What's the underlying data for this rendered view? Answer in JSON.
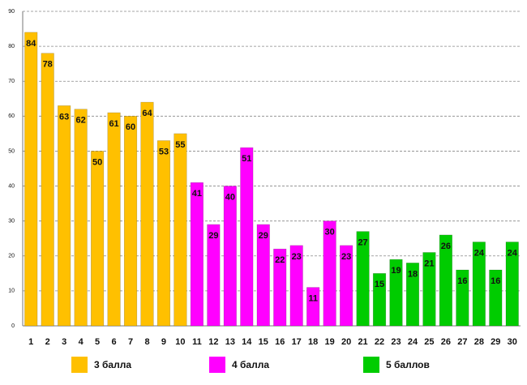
{
  "chart_data": {
    "type": "bar",
    "categories": [
      "1",
      "2",
      "3",
      "4",
      "5",
      "6",
      "7",
      "8",
      "9",
      "10",
      "11",
      "12",
      "13",
      "14",
      "15",
      "16",
      "17",
      "18",
      "19",
      "20",
      "21",
      "22",
      "23",
      "24",
      "25",
      "26",
      "27",
      "28",
      "29",
      "30"
    ],
    "series": [
      {
        "name": "3 балла",
        "color": "#ffc000",
        "values": [
          84,
          78,
          63,
          62,
          50,
          61,
          60,
          64,
          53,
          55,
          null,
          null,
          null,
          null,
          null,
          null,
          null,
          null,
          null,
          null,
          null,
          null,
          null,
          null,
          null,
          null,
          null,
          null,
          null,
          null
        ]
      },
      {
        "name": "4 балла",
        "color": "#ff00ff",
        "values": [
          null,
          null,
          null,
          null,
          null,
          null,
          null,
          null,
          null,
          null,
          41,
          29,
          40,
          51,
          29,
          22,
          23,
          11,
          30,
          23,
          null,
          null,
          null,
          null,
          null,
          null,
          null,
          null,
          null,
          null
        ]
      },
      {
        "name": "5 баллов",
        "color": "#00cc00",
        "values": [
          null,
          null,
          null,
          null,
          null,
          null,
          null,
          null,
          null,
          null,
          null,
          null,
          null,
          null,
          null,
          null,
          null,
          null,
          null,
          null,
          27,
          15,
          19,
          18,
          21,
          26,
          16,
          24,
          16,
          24
        ]
      }
    ],
    "ylim": [
      0,
      90
    ],
    "yticks": [
      0,
      10,
      20,
      30,
      40,
      50,
      60,
      70,
      80,
      90
    ],
    "grid": true
  }
}
